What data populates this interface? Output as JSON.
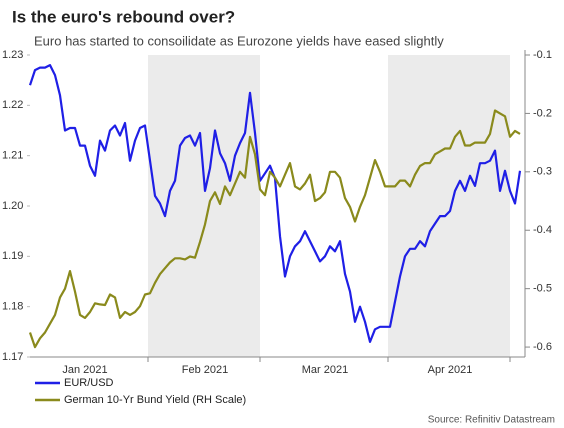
{
  "chart_data": {
    "type": "line",
    "title": "Is the euro's rebound over?",
    "subtitle": "Euro has started to consoilidate as Eurozone yields have eased slightly",
    "source": "Source: Refinitiv Datastream",
    "categories": [
      null,
      null,
      null,
      null,
      null,
      null,
      null,
      null,
      null,
      null,
      null,
      "Jan 2021",
      null,
      null,
      null,
      null,
      null,
      null,
      null,
      null,
      null,
      null,
      null,
      null,
      null,
      null,
      null,
      null,
      null,
      null,
      null,
      null,
      null,
      null,
      null,
      "Feb 2021",
      null,
      null,
      null,
      null,
      null,
      null,
      null,
      null,
      null,
      null,
      null,
      null,
      null,
      null,
      null,
      null,
      null,
      null,
      null,
      null,
      null,
      null,
      null,
      "Mar 2021",
      null,
      null,
      null,
      null,
      null,
      null,
      null,
      null,
      null,
      null,
      null,
      null,
      null,
      null,
      null,
      null,
      null,
      null,
      null,
      null,
      null,
      null,
      null,
      null,
      "Apr 2021",
      null,
      null,
      null,
      null,
      null,
      null,
      null,
      null,
      null,
      null,
      null,
      null,
      null,
      null
    ],
    "ylim": [
      1.17,
      1.23
    ],
    "yticks": [
      1.17,
      1.18,
      1.19,
      {
        "value": 1.2,
        "label": "1.20"
      },
      1.21,
      1.22,
      1.23
    ],
    "y2lim": [
      -0.617,
      -0.1
    ],
    "y2ticks": [
      -0.1,
      -0.2,
      -0.3,
      -0.4,
      -0.5,
      -0.6
    ],
    "series": [
      {
        "name": "EUR/USD",
        "color": "#1f1fe6",
        "values": [
          1.224,
          1.227,
          1.2275,
          1.2275,
          1.228,
          1.226,
          1.222,
          1.215,
          1.2155,
          1.2155,
          1.212,
          1.212,
          1.208,
          1.206,
          1.213,
          1.211,
          1.215,
          1.216,
          1.214,
          1.2165,
          1.209,
          1.213,
          1.2155,
          1.216,
          1.209,
          1.202,
          1.2005,
          1.198,
          1.203,
          1.205,
          1.212,
          1.2135,
          1.214,
          1.212,
          1.2145,
          1.203,
          1.2075,
          1.215,
          1.2105,
          1.2085,
          1.205,
          1.21,
          1.2125,
          1.2145,
          1.2225,
          1.2145,
          1.205,
          1.2065,
          1.208,
          1.2055,
          1.194,
          1.186,
          1.19,
          1.192,
          1.193,
          1.195,
          1.193,
          1.191,
          1.189,
          1.19,
          1.192,
          1.191,
          1.193,
          1.1865,
          1.183,
          1.177,
          1.18,
          1.177,
          1.173,
          1.1755,
          1.176,
          1.176,
          1.176,
          1.181,
          1.186,
          1.19,
          1.1915,
          1.1915,
          1.193,
          1.192,
          1.195,
          1.1965,
          1.198,
          1.198,
          1.199,
          1.203,
          1.205,
          1.203,
          1.206,
          1.204,
          1.2085,
          1.2085,
          1.209,
          1.211,
          1.203,
          1.207,
          1.203,
          1.2005,
          1.207
        ]
      },
      {
        "name": "German 10-Yr Bund Yield (RH Scale)",
        "color": "#8a8a1c",
        "axis": "y2",
        "values": [
          -0.575,
          -0.6,
          -0.585,
          -0.575,
          -0.56,
          -0.545,
          -0.515,
          -0.5,
          -0.47,
          -0.505,
          -0.545,
          -0.55,
          -0.54,
          -0.525,
          -0.527,
          -0.528,
          -0.51,
          -0.515,
          -0.55,
          -0.54,
          -0.545,
          -0.54,
          -0.53,
          -0.51,
          -0.508,
          -0.49,
          -0.475,
          -0.465,
          -0.455,
          -0.448,
          -0.448,
          -0.45,
          -0.445,
          -0.447,
          -0.42,
          -0.39,
          -0.35,
          -0.335,
          -0.355,
          -0.325,
          -0.34,
          -0.32,
          -0.3,
          -0.31,
          -0.24,
          -0.27,
          -0.33,
          -0.34,
          -0.3,
          -0.31,
          -0.325,
          -0.305,
          -0.285,
          -0.325,
          -0.33,
          -0.32,
          -0.305,
          -0.35,
          -0.345,
          -0.335,
          -0.3,
          -0.3,
          -0.31,
          -0.345,
          -0.36,
          -0.385,
          -0.36,
          -0.34,
          -0.31,
          -0.28,
          -0.3,
          -0.325,
          -0.325,
          -0.325,
          -0.315,
          -0.315,
          -0.325,
          -0.305,
          -0.29,
          -0.285,
          -0.285,
          -0.27,
          -0.265,
          -0.26,
          -0.26,
          -0.24,
          -0.23,
          -0.255,
          -0.255,
          -0.25,
          -0.25,
          -0.25,
          -0.235,
          -0.195,
          -0.2,
          -0.205,
          -0.24,
          -0.23,
          -0.235
        ]
      }
    ]
  }
}
